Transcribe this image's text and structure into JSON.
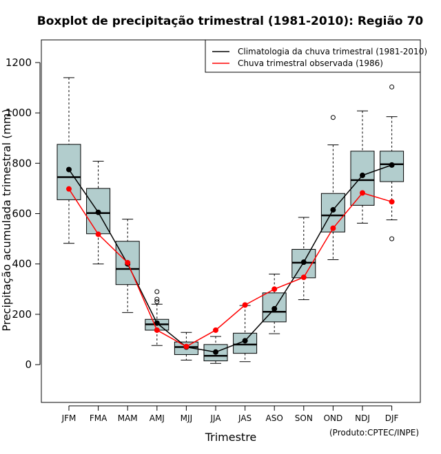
{
  "chart_data": {
    "type": "boxplot",
    "title": "Boxplot de precipitação trimestral (1981-2010): Região 70",
    "xlabel": "Trimestre",
    "ylabel": "Precipitação acumulada trimestral (mm)",
    "ylim": [
      -150,
      1290
    ],
    "yticks": [
      0,
      200,
      400,
      600,
      800,
      1000,
      1200
    ],
    "categories": [
      "JFM",
      "FMA",
      "MAM",
      "AMJ",
      "MJJ",
      "JJA",
      "JAS",
      "ASO",
      "SON",
      "OND",
      "NDJ",
      "DJF"
    ],
    "boxes": [
      {
        "min": 482,
        "q1": 655,
        "median": 745,
        "q3": 875,
        "max": 1140,
        "outliers": []
      },
      {
        "min": 400,
        "q1": 520,
        "median": 602,
        "q3": 700,
        "max": 808,
        "outliers": []
      },
      {
        "min": 207,
        "q1": 318,
        "median": 380,
        "q3": 490,
        "max": 578,
        "outliers": []
      },
      {
        "min": 76,
        "q1": 137,
        "median": 160,
        "q3": 180,
        "max": 240,
        "outliers": [
          250,
          260,
          290
        ]
      },
      {
        "min": 18,
        "q1": 40,
        "median": 70,
        "q3": 90,
        "max": 128,
        "outliers": []
      },
      {
        "min": 5,
        "q1": 15,
        "median": 35,
        "q3": 80,
        "max": 112,
        "outliers": []
      },
      {
        "min": 12,
        "q1": 45,
        "median": 80,
        "q3": 125,
        "max": 235,
        "outliers": []
      },
      {
        "min": 123,
        "q1": 170,
        "median": 210,
        "q3": 285,
        "max": 360,
        "outliers": []
      },
      {
        "min": 258,
        "q1": 345,
        "median": 405,
        "q3": 458,
        "max": 585,
        "outliers": []
      },
      {
        "min": 417,
        "q1": 527,
        "median": 593,
        "q3": 680,
        "max": 873,
        "outliers": [
          982
        ]
      },
      {
        "min": 562,
        "q1": 633,
        "median": 733,
        "q3": 848,
        "max": 1008,
        "outliers": []
      },
      {
        "min": 575,
        "q1": 727,
        "median": 796,
        "q3": 848,
        "max": 985,
        "outliers": [
          500,
          1103
        ]
      }
    ],
    "series": [
      {
        "name": "Climatologia da chuva trimestral (1981-2010)",
        "color": "#000000",
        "values": [
          775,
          605,
          400,
          165,
          70,
          50,
          95,
          222,
          407,
          615,
          752,
          793
        ]
      },
      {
        "name": "Chuva trimestral observada (1986)",
        "color": "#ff0000",
        "values": [
          698,
          518,
          405,
          137,
          72,
          137,
          237,
          300,
          347,
          542,
          682,
          647
        ]
      }
    ],
    "legend_position": "top-right",
    "box_fill": "#b2cdcd",
    "credit": "(Produto:CPTEC/INPE)"
  }
}
